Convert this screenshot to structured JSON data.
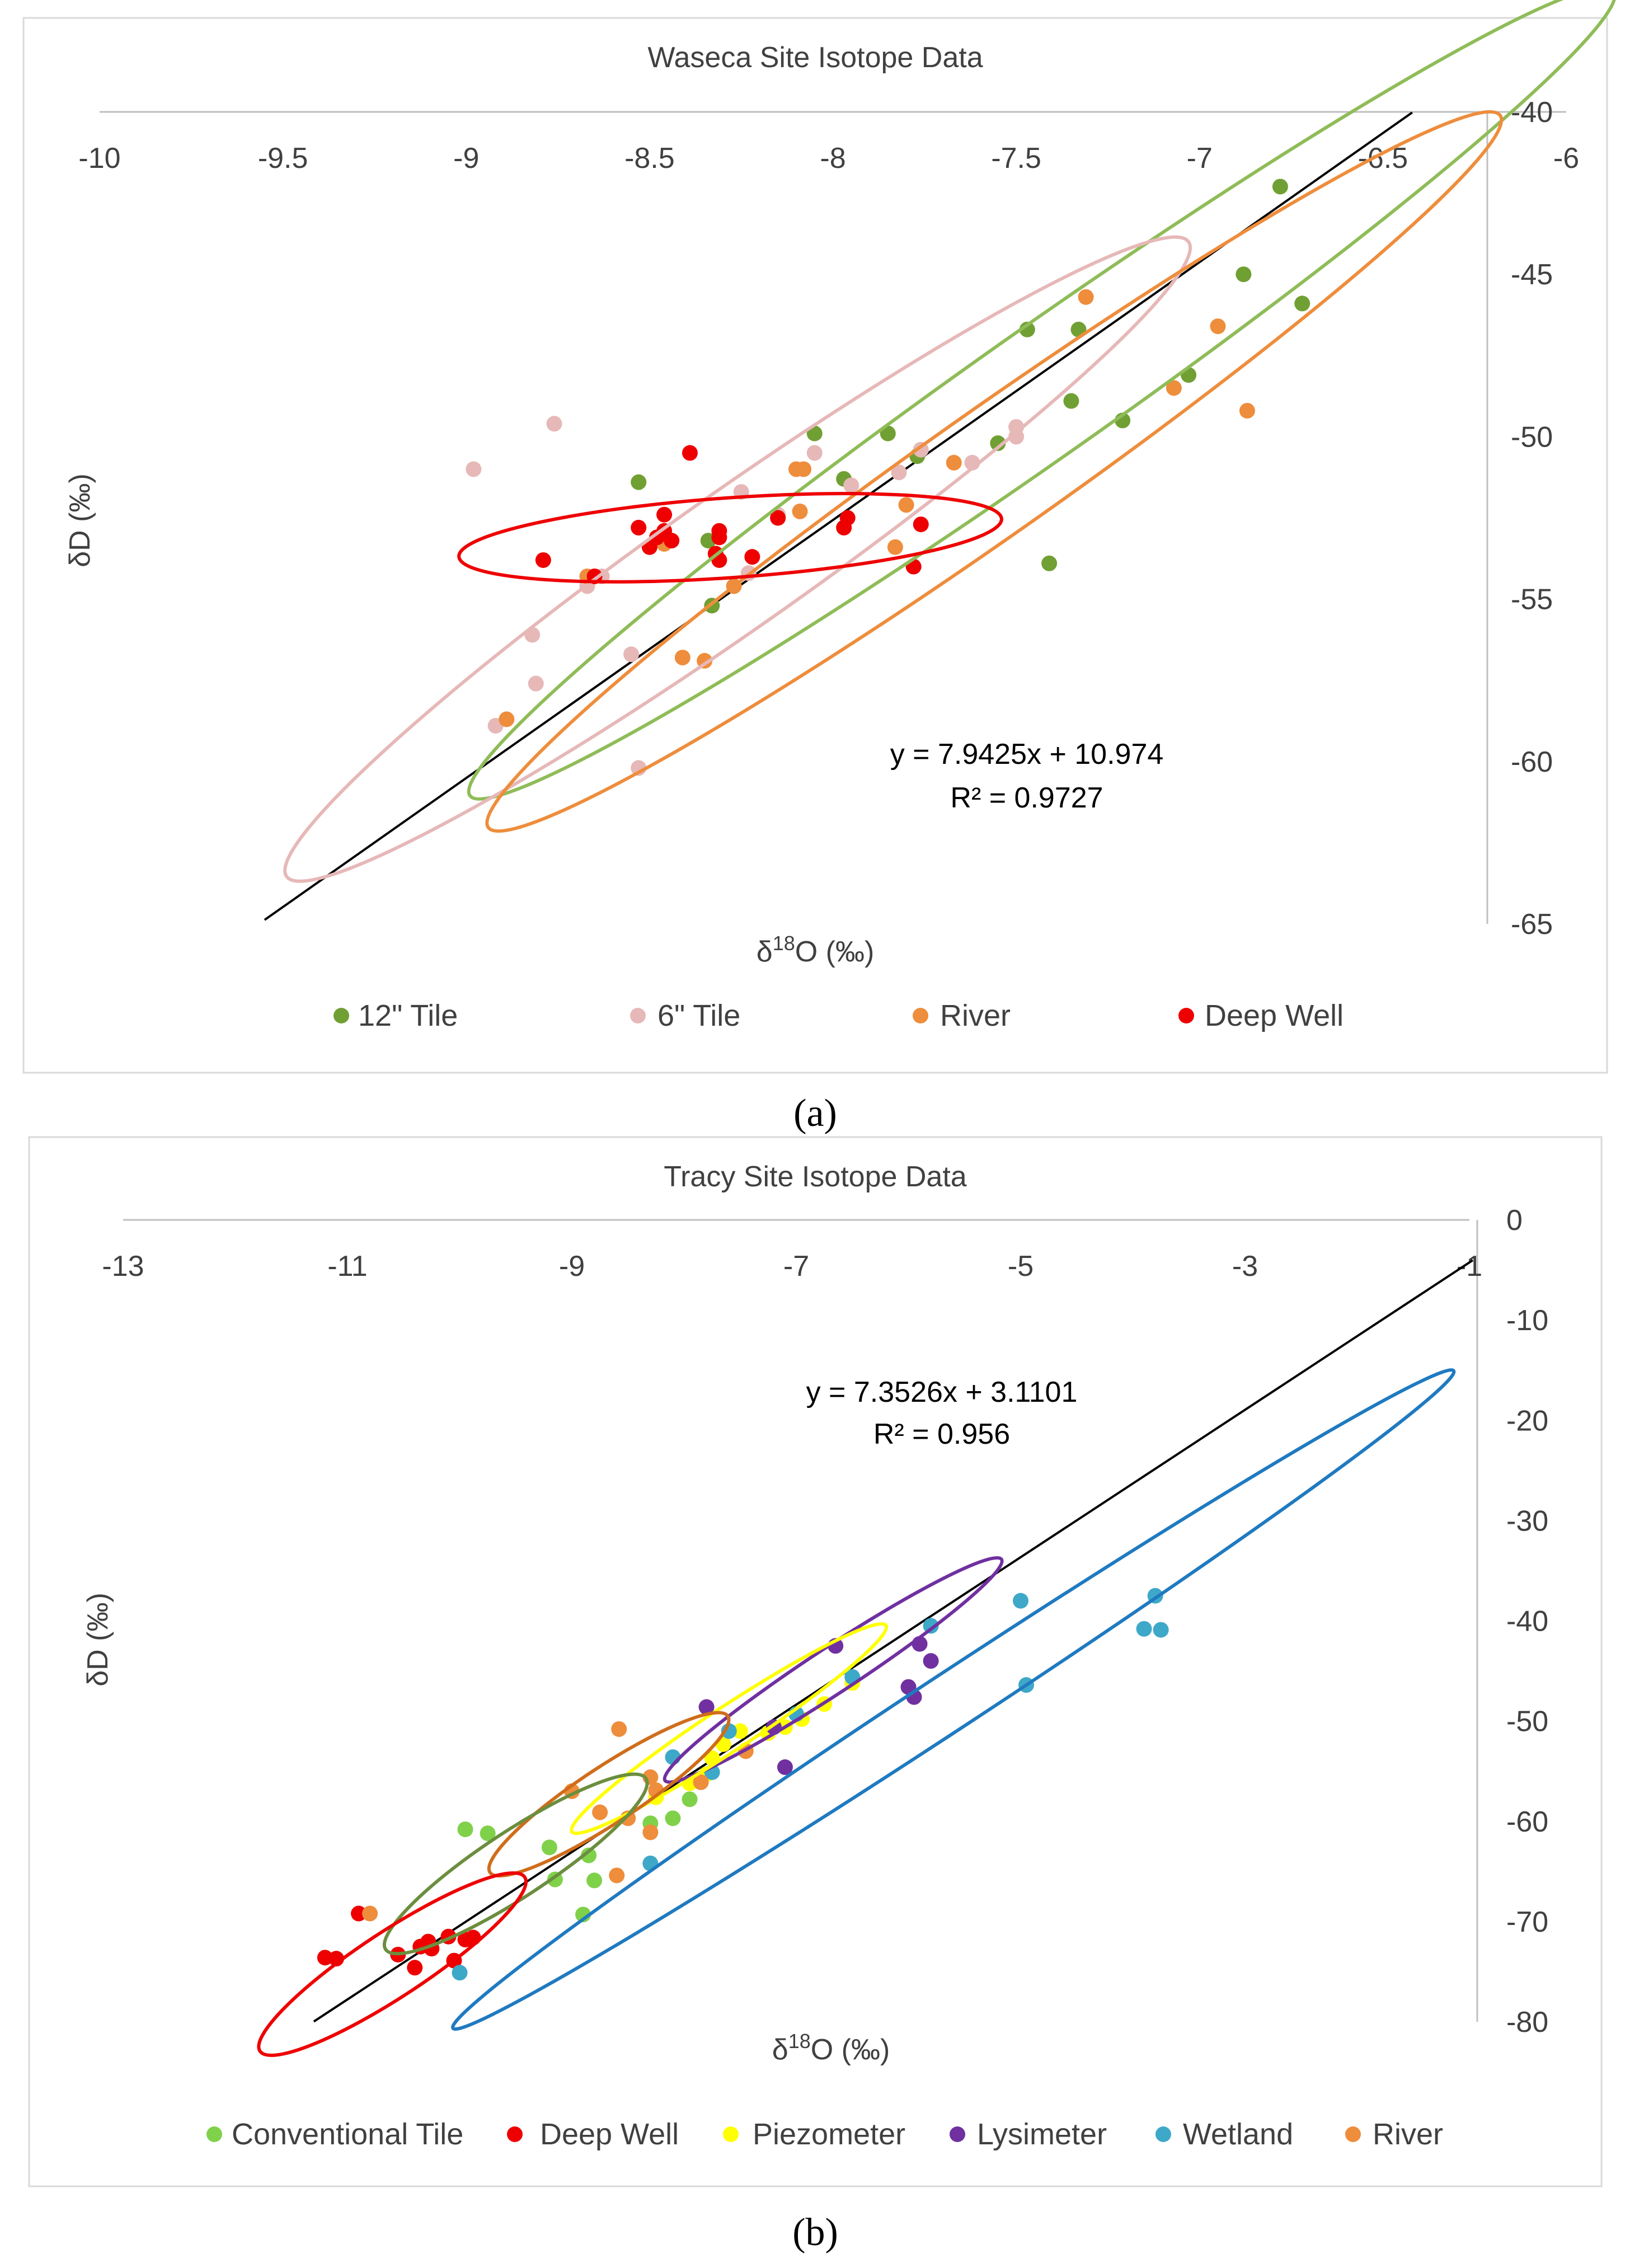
{
  "chart_data": [
    {
      "type": "scatter",
      "title": "Waseca Site Isotope Data",
      "caption": "(a)",
      "xlabel_main": "δ",
      "xlabel_sup": "18",
      "xlabel_rest": "O (‰)",
      "ylabel": "δD (‰)",
      "xlim": [
        -10,
        -6
      ],
      "ylim": [
        -65,
        -40
      ],
      "x_ticks": [
        -10,
        -9.5,
        -9,
        -8.5,
        -8,
        -7.5,
        -7,
        -6.5,
        -6
      ],
      "y_ticks": [
        -40,
        -45,
        -50,
        -55,
        -60,
        -65
      ],
      "trendline": {
        "slope": 7.9425,
        "intercept": 10.974,
        "x_range": [
          -9.55,
          -6.42
        ],
        "color": "#000000"
      },
      "equation": "y = 7.9425x + 10.974",
      "r_squared": "R² = 0.9727",
      "series": [
        {
          "name": "12\" Tile",
          "color": "#70a033",
          "points": [
            [
              -6.78,
              -42.3
            ],
            [
              -6.88,
              -45.0
            ],
            [
              -6.72,
              -45.9
            ],
            [
              -7.47,
              -46.7
            ],
            [
              -7.33,
              -46.7
            ],
            [
              -7.35,
              -48.9
            ],
            [
              -7.03,
              -48.1
            ],
            [
              -7.21,
              -49.5
            ],
            [
              -8.05,
              -49.9
            ],
            [
              -7.85,
              -49.9
            ],
            [
              -7.55,
              -50.2
            ],
            [
              -7.77,
              -50.6
            ],
            [
              -7.97,
              -51.3
            ],
            [
              -8.53,
              -51.4
            ],
            [
              -8.34,
              -53.2
            ],
            [
              -8.33,
              -55.2
            ],
            [
              -7.41,
              -53.9
            ]
          ]
        },
        {
          "name": "6\" Tile",
          "color": "#e6b8b7",
          "points": [
            [
              -8.76,
              -49.6
            ],
            [
              -8.98,
              -51.0
            ],
            [
              -7.5,
              -49.7
            ],
            [
              -7.5,
              -50.0
            ],
            [
              -7.62,
              -50.8
            ],
            [
              -8.05,
              -50.5
            ],
            [
              -7.76,
              -50.4
            ],
            [
              -7.95,
              -51.5
            ],
            [
              -7.82,
              -51.1
            ],
            [
              -8.25,
              -51.7
            ],
            [
              -8.15,
              -52.4
            ],
            [
              -8.23,
              -54.2
            ],
            [
              -8.63,
              -54.3
            ],
            [
              -8.67,
              -54.6
            ],
            [
              -8.82,
              -56.1
            ],
            [
              -8.55,
              -56.7
            ],
            [
              -8.81,
              -57.6
            ],
            [
              -8.92,
              -58.9
            ],
            [
              -8.53,
              -60.2
            ]
          ]
        },
        {
          "name": "River",
          "color": "#ee8d3c",
          "points": [
            [
              -7.31,
              -45.7
            ],
            [
              -6.95,
              -46.6
            ],
            [
              -7.07,
              -48.5
            ],
            [
              -6.87,
              -49.2
            ],
            [
              -7.67,
              -50.8
            ],
            [
              -8.08,
              -51.0
            ],
            [
              -8.1,
              -51.0
            ],
            [
              -7.8,
              -52.1
            ],
            [
              -8.09,
              -52.3
            ],
            [
              -7.83,
              -53.4
            ],
            [
              -8.46,
              -53.3
            ],
            [
              -8.27,
              -54.6
            ],
            [
              -8.41,
              -56.8
            ],
            [
              -8.35,
              -56.9
            ],
            [
              -8.89,
              -58.7
            ],
            [
              -8.67,
              -54.3
            ]
          ]
        },
        {
          "name": "Deep Well",
          "color": "#ee0000",
          "points": [
            [
              -8.39,
              -50.5
            ],
            [
              -8.46,
              -52.4
            ],
            [
              -8.53,
              -52.8
            ],
            [
              -8.46,
              -52.9
            ],
            [
              -8.48,
              -53.1
            ],
            [
              -8.44,
              -53.2
            ],
            [
              -8.5,
              -53.4
            ],
            [
              -8.31,
              -52.9
            ],
            [
              -8.31,
              -53.1
            ],
            [
              -8.15,
              -52.5
            ],
            [
              -7.96,
              -52.5
            ],
            [
              -7.97,
              -52.8
            ],
            [
              -7.76,
              -52.7
            ],
            [
              -8.22,
              -53.7
            ],
            [
              -8.31,
              -53.8
            ],
            [
              -8.79,
              -53.8
            ],
            [
              -8.65,
              -54.3
            ],
            [
              -7.78,
              -54.0
            ],
            [
              -8.32,
              -53.6
            ]
          ]
        }
      ],
      "ellipses": [
        {
          "series": "12\" Tile",
          "color": "#8fbc58",
          "cx": -7.43,
          "cy": -48.66,
          "rx": 1.56,
          "ry": 0.195,
          "tilt_deg": 40.2
        },
        {
          "series": "6\" Tile",
          "color": "#e6b8b7",
          "cx": -8.26,
          "cy": -53.77,
          "rx": 1.23,
          "ry": 0.205,
          "tilt_deg": 37.0
        },
        {
          "series": "River",
          "color": "#ee8d3c",
          "cx": -7.56,
          "cy": -51.07,
          "rx": 1.38,
          "ry": 0.19,
          "tilt_deg": 41.4
        },
        {
          "series": "Deep Well",
          "color": "#ee0000",
          "cx": -8.28,
          "cy": -53.11,
          "rx": 0.74,
          "ry": 0.22,
          "tilt_deg": 4.0
        }
      ],
      "legend_position": "bottom"
    },
    {
      "type": "scatter",
      "title": "Tracy Site Isotope Data",
      "caption": "(b)",
      "xlabel_main": "δ",
      "xlabel_sup": "18",
      "xlabel_rest": "O (‰)",
      "ylabel": "δD (‰)",
      "xlim": [
        -13,
        -1
      ],
      "ylim": [
        -80,
        0
      ],
      "x_ticks": [
        -13,
        -11,
        -9,
        -7,
        -5,
        -3,
        -1
      ],
      "y_ticks": [
        0,
        -10,
        -20,
        -30,
        -40,
        -50,
        -60,
        -70,
        -80
      ],
      "trendline": {
        "slope": 7.3526,
        "intercept": 3.1101,
        "x_range": [
          -11.3,
          -0.97
        ],
        "color": "#000000"
      },
      "equation": "y = 7.3526x + 3.1101",
      "r_squared": "R² = 0.956",
      "series": [
        {
          "name": "Conventional Tile",
          "color": "#7fd14a",
          "points": [
            [
              -9.95,
              -60.8
            ],
            [
              -9.75,
              -61.2
            ],
            [
              -9.2,
              -62.6
            ],
            [
              -9.15,
              -65.8
            ],
            [
              -8.8,
              -65.9
            ],
            [
              -8.85,
              -63.4
            ],
            [
              -8.3,
              -60.2
            ],
            [
              -8.1,
              -59.7
            ],
            [
              -7.95,
              -57.8
            ],
            [
              -8.9,
              -69.3
            ]
          ]
        },
        {
          "name": "Deep Well",
          "color": "#ee0000",
          "points": [
            [
              -10.9,
              -69.2
            ],
            [
              -11.2,
              -73.6
            ],
            [
              -11.1,
              -73.7
            ],
            [
              -10.55,
              -73.3
            ],
            [
              -10.35,
              -72.5
            ],
            [
              -10.28,
              -72.0
            ],
            [
              -10.25,
              -72.7
            ],
            [
              -10.1,
              -71.5
            ],
            [
              -10.05,
              -73.9
            ],
            [
              -10.4,
              -74.6
            ],
            [
              -9.95,
              -71.8
            ],
            [
              -9.88,
              -71.6
            ]
          ]
        },
        {
          "name": "Piezometer",
          "color": "#ffff00",
          "points": [
            [
              -6.5,
              -46.2
            ],
            [
              -6.75,
              -48.3
            ],
            [
              -6.95,
              -49.8
            ],
            [
              -7.1,
              -50.6
            ],
            [
              -7.25,
              -51.2
            ],
            [
              -7.5,
              -51.0
            ],
            [
              -7.65,
              -52.3
            ],
            [
              -7.45,
              -52.9
            ],
            [
              -7.75,
              -53.7
            ],
            [
              -7.8,
              -55.3
            ],
            [
              -7.95,
              -56.2
            ],
            [
              -8.25,
              -57.6
            ]
          ]
        },
        {
          "name": "Lysimeter",
          "color": "#7030a0",
          "points": [
            [
              -6.65,
              -42.5
            ],
            [
              -5.9,
              -42.3
            ],
            [
              -5.8,
              -44.0
            ],
            [
              -6.0,
              -46.6
            ],
            [
              -5.95,
              -47.6
            ],
            [
              -7.8,
              -48.6
            ],
            [
              -7.2,
              -50.6
            ],
            [
              -7.1,
              -54.6
            ]
          ]
        },
        {
          "name": "Wetland",
          "color": "#3ea8c8",
          "points": [
            [
              -3.8,
              -37.5
            ],
            [
              -5.0,
              -38.0
            ],
            [
              -5.8,
              -40.5
            ],
            [
              -3.9,
              -40.8
            ],
            [
              -3.75,
              -40.9
            ],
            [
              -4.95,
              -46.4
            ],
            [
              -6.5,
              -45.6
            ],
            [
              -7.0,
              -49.3
            ],
            [
              -7.6,
              -51.0
            ],
            [
              -8.1,
              -53.6
            ],
            [
              -7.75,
              -55.1
            ],
            [
              -8.3,
              -64.2
            ],
            [
              -10.0,
              -75.1
            ]
          ]
        },
        {
          "name": "River",
          "color": "#ee8d3c",
          "points": [
            [
              -8.58,
              -50.8
            ],
            [
              -8.3,
              -55.6
            ],
            [
              -8.25,
              -56.9
            ],
            [
              -7.85,
              -56.1
            ],
            [
              -9.0,
              -57.0
            ],
            [
              -8.75,
              -59.1
            ],
            [
              -8.5,
              -59.7
            ],
            [
              -8.3,
              -61.1
            ],
            [
              -8.6,
              -65.4
            ],
            [
              -10.8,
              -69.2
            ],
            [
              -7.45,
              -53.0
            ]
          ]
        }
      ],
      "ellipses": [
        {
          "series": "Wetland",
          "color": "#1f7ac0",
          "cx": -5.6,
          "cy": -47.85,
          "rx": 4.46,
          "ry": 0.31,
          "tilt_deg": 30.0
        },
        {
          "series": "Lysimeter",
          "color": "#7030a0",
          "cx": -6.67,
          "cy": -44.9,
          "rx": 1.5,
          "ry": 0.25,
          "tilt_deg": 30.3
        },
        {
          "series": "Piezometer",
          "color": "#ffff00",
          "cx": -7.6,
          "cy": -50.75,
          "rx": 1.4,
          "ry": 0.24,
          "tilt_deg": 30.2
        },
        {
          "series": "River",
          "color": "#d06d1b",
          "cx": -8.67,
          "cy": -57.3,
          "rx": 1.06,
          "ry": 0.31,
          "tilt_deg": 30.1
        },
        {
          "series": "Conventional Tile",
          "color": "#6b8e3e",
          "cx": -9.5,
          "cy": -64.25,
          "rx": 1.16,
          "ry": 0.36,
          "tilt_deg": 34.0
        },
        {
          "series": "Deep Well",
          "color": "#ee0000",
          "cx": -10.6,
          "cy": -74.25,
          "rx": 1.18,
          "ry": 0.36,
          "tilt_deg": 18.0
        }
      ],
      "legend_position": "bottom"
    }
  ]
}
